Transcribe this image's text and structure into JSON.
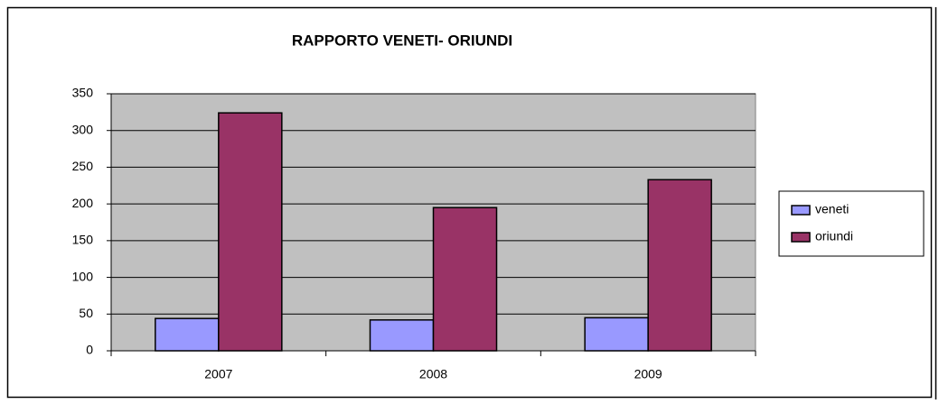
{
  "chart_data": {
    "type": "bar",
    "title": "RAPPORTO VENETI- ORIUNDI",
    "categories": [
      "2007",
      "2008",
      "2009"
    ],
    "series": [
      {
        "name": "veneti",
        "color": "#9999ff",
        "values": [
          44,
          42,
          45
        ]
      },
      {
        "name": "oriundi",
        "color": "#993366",
        "values": [
          324,
          195,
          233
        ]
      }
    ],
    "ylim": [
      0,
      350
    ],
    "yticks": [
      0,
      50,
      100,
      150,
      200,
      250,
      300,
      350
    ],
    "grid": true,
    "legend": "right",
    "plot_background": "#c0c0c0"
  }
}
